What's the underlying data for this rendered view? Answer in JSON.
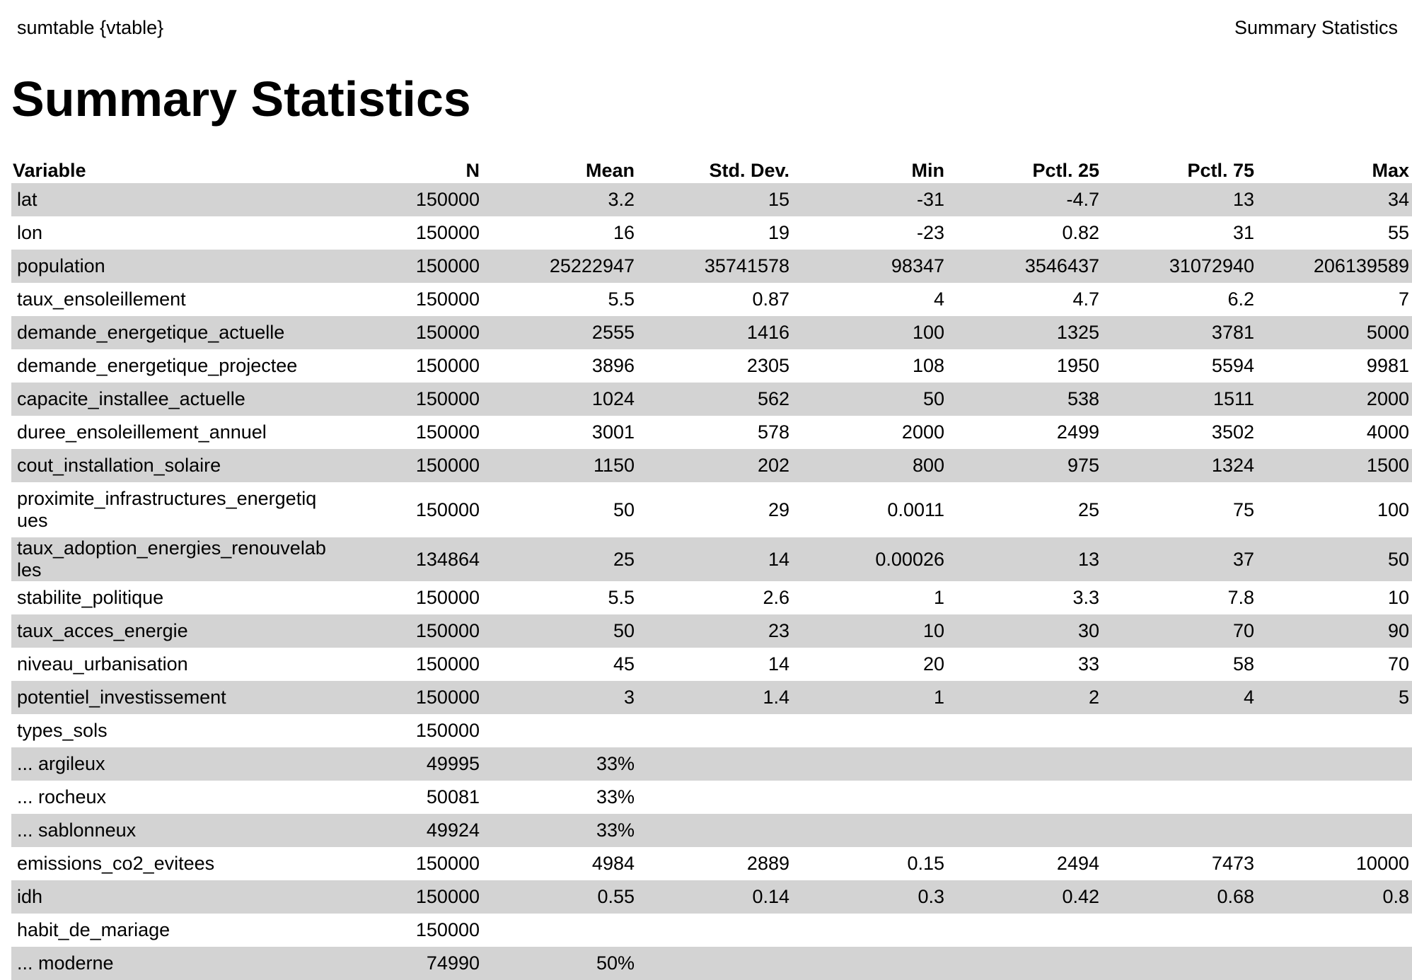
{
  "header": {
    "left": "sumtable {vtable}",
    "right": "Summary Statistics"
  },
  "title": "Summary Statistics",
  "table": {
    "columns": [
      "Variable",
      "N",
      "Mean",
      "Std. Dev.",
      "Min",
      "Pctl. 25",
      "Pctl. 75",
      "Max"
    ],
    "rows": [
      [
        "lat",
        "150000",
        "3.2",
        "15",
        "-31",
        "-4.7",
        "13",
        "34"
      ],
      [
        "lon",
        "150000",
        "16",
        "19",
        "-23",
        "0.82",
        "31",
        "55"
      ],
      [
        "population",
        "150000",
        "25222947",
        "35741578",
        "98347",
        "3546437",
        "31072940",
        "206139589"
      ],
      [
        "taux_ensoleillement",
        "150000",
        "5.5",
        "0.87",
        "4",
        "4.7",
        "6.2",
        "7"
      ],
      [
        "demande_energetique_actuelle",
        "150000",
        "2555",
        "1416",
        "100",
        "1325",
        "3781",
        "5000"
      ],
      [
        "demande_energetique_projectee",
        "150000",
        "3896",
        "2305",
        "108",
        "1950",
        "5594",
        "9981"
      ],
      [
        "capacite_installee_actuelle",
        "150000",
        "1024",
        "562",
        "50",
        "538",
        "1511",
        "2000"
      ],
      [
        "duree_ensoleillement_annuel",
        "150000",
        "3001",
        "578",
        "2000",
        "2499",
        "3502",
        "4000"
      ],
      [
        "cout_installation_solaire",
        "150000",
        "1150",
        "202",
        "800",
        "975",
        "1324",
        "1500"
      ],
      [
        "proximite_infrastructures_energetiques",
        "150000",
        "50",
        "29",
        "0.0011",
        "25",
        "75",
        "100"
      ],
      [
        "taux_adoption_energies_renouvelables",
        "134864",
        "25",
        "14",
        "0.00026",
        "13",
        "37",
        "50"
      ],
      [
        "stabilite_politique",
        "150000",
        "5.5",
        "2.6",
        "1",
        "3.3",
        "7.8",
        "10"
      ],
      [
        "taux_acces_energie",
        "150000",
        "50",
        "23",
        "10",
        "30",
        "70",
        "90"
      ],
      [
        "niveau_urbanisation",
        "150000",
        "45",
        "14",
        "20",
        "33",
        "58",
        "70"
      ],
      [
        "potentiel_investissement",
        "150000",
        "3",
        "1.4",
        "1",
        "2",
        "4",
        "5"
      ],
      [
        "types_sols",
        "150000",
        "",
        "",
        "",
        "",
        "",
        ""
      ],
      [
        "... argileux",
        "49995",
        "33%",
        "",
        "",
        "",
        "",
        ""
      ],
      [
        "... rocheux",
        "50081",
        "33%",
        "",
        "",
        "",
        "",
        ""
      ],
      [
        "... sablonneux",
        "49924",
        "33%",
        "",
        "",
        "",
        "",
        ""
      ],
      [
        "emissions_co2_evitees",
        "150000",
        "4984",
        "2889",
        "0.15",
        "2494",
        "7473",
        "10000"
      ],
      [
        "idh",
        "150000",
        "0.55",
        "0.14",
        "0.3",
        "0.42",
        "0.68",
        "0.8"
      ],
      [
        "habit_de_mariage",
        "150000",
        "",
        "",
        "",
        "",
        "",
        ""
      ],
      [
        "... moderne",
        "74990",
        "50%",
        "",
        "",
        "",
        "",
        ""
      ]
    ]
  }
}
